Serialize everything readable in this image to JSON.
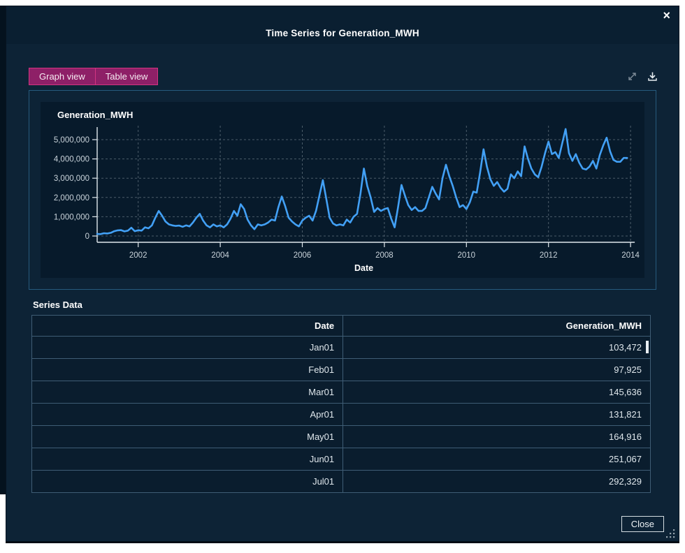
{
  "colors": {
    "modal_bg": "#0d2336",
    "header_bg": "#0a1f31",
    "panel_bg": "#071a2b",
    "tab_fill": "#8e2067",
    "tab_border": "#d23481",
    "line": "#42a0f5",
    "grid": "#5d6d79",
    "axis": "#dfe7ec"
  },
  "dialog": {
    "title": "Time Series for Generation_MWH",
    "close_x": "×",
    "tabs": [
      {
        "label": "Graph view"
      },
      {
        "label": "Table view"
      }
    ],
    "icons": [
      "expand-icon",
      "download-icon"
    ],
    "close_button": "Close"
  },
  "chart_data": {
    "type": "line",
    "title": "Generation_MWH",
    "xlabel": "Date",
    "ylabel": "",
    "x_start": "2001-01",
    "x_interval": "month",
    "ylim": [
      0,
      5500000
    ],
    "yticks": [
      0,
      1000000,
      2000000,
      3000000,
      4000000,
      5000000
    ],
    "ytick_labels": [
      "0",
      "1,000,000",
      "2,000,000",
      "3,000,000",
      "4,000,000",
      "5,000,000"
    ],
    "xticks": [
      2002,
      2004,
      2006,
      2008,
      2010,
      2012,
      2014
    ],
    "grid": "dashed",
    "legend": "none",
    "line_color": "#42a0f5",
    "values": [
      103472,
      97925,
      145636,
      131821,
      164916,
      251067,
      292329,
      305000,
      240000,
      280000,
      430000,
      250000,
      300000,
      280000,
      450000,
      400000,
      550000,
      950000,
      1300000,
      1050000,
      750000,
      600000,
      550000,
      520000,
      540000,
      480000,
      550000,
      500000,
      700000,
      950000,
      1150000,
      800000,
      550000,
      450000,
      600000,
      500000,
      550000,
      450000,
      600000,
      900000,
      1300000,
      1050000,
      1650000,
      1400000,
      850000,
      550000,
      350000,
      600000,
      550000,
      600000,
      700000,
      850000,
      800000,
      1500000,
      2050000,
      1550000,
      950000,
      750000,
      600000,
      500000,
      800000,
      950000,
      1050000,
      800000,
      1300000,
      2100000,
      2900000,
      1950000,
      950000,
      650000,
      550000,
      600000,
      550000,
      850000,
      700000,
      1000000,
      1150000,
      2200000,
      3500000,
      2600000,
      2000000,
      1250000,
      1450000,
      1300000,
      1400000,
      1450000,
      900000,
      450000,
      1500000,
      2650000,
      2100000,
      1600000,
      1350000,
      1500000,
      1300000,
      1300000,
      1450000,
      2000000,
      2550000,
      2200000,
      1900000,
      3000000,
      3700000,
      3100000,
      2600000,
      2000000,
      1500000,
      1600000,
      1400000,
      1750000,
      2300000,
      2250000,
      3300000,
      4500000,
      3600000,
      2950000,
      2600000,
      2800000,
      2500000,
      2300000,
      2450000,
      3200000,
      3000000,
      3350000,
      3100000,
      4650000,
      4000000,
      3500000,
      3200000,
      3050000,
      3600000,
      4300000,
      4900000,
      4250000,
      4350000,
      4050000,
      4800000,
      5550000,
      4300000,
      3900000,
      4250000,
      3800000,
      3500000,
      3450000,
      3600000,
      3900000,
      3500000,
      4200000,
      4700000,
      5100000,
      4400000,
      3950000,
      3850000,
      3850000,
      4050000,
      4050000
    ]
  },
  "series_table": {
    "heading": "Series Data",
    "columns": [
      "Date",
      "Generation_MWH"
    ],
    "rows": [
      {
        "date": "Jan01",
        "value": "103,472"
      },
      {
        "date": "Feb01",
        "value": "97,925"
      },
      {
        "date": "Mar01",
        "value": "145,636"
      },
      {
        "date": "Apr01",
        "value": "131,821"
      },
      {
        "date": "May01",
        "value": "164,916"
      },
      {
        "date": "Jun01",
        "value": "251,067"
      },
      {
        "date": "Jul01",
        "value": "292,329"
      }
    ]
  }
}
